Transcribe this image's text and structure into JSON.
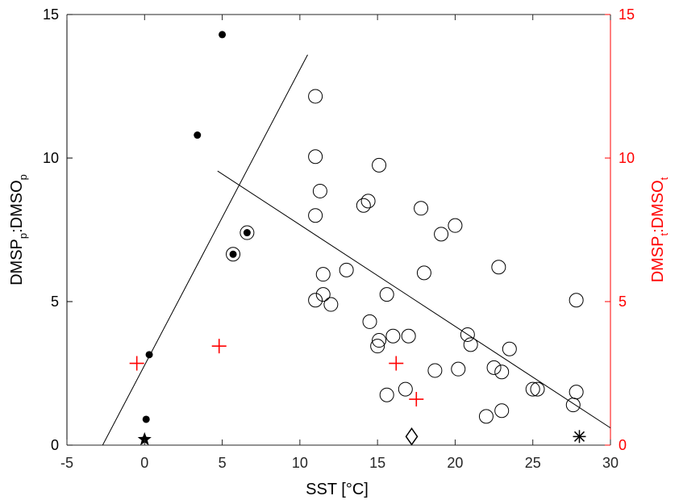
{
  "chart_data": {
    "type": "scatter",
    "xlabel": "SST [°C]",
    "ylabel_left": {
      "main": "DMSP",
      "sub1": "p",
      "sep": ":DMSO",
      "sub2": "p"
    },
    "ylabel_right": {
      "main": "DMSP",
      "sub1": "t",
      "sep": ":DMSO",
      "sub2": "t"
    },
    "xlim": [
      -5,
      30
    ],
    "ylim_left": [
      0,
      15
    ],
    "ylim_right": [
      0,
      15
    ],
    "x_ticks": [
      -5,
      0,
      5,
      10,
      15,
      20,
      25,
      30
    ],
    "y_ticks_left": [
      0,
      5,
      10,
      15
    ],
    "y_ticks_right": [
      0,
      5,
      10,
      15
    ],
    "x_tick_labels": [
      "-5",
      "0",
      "5",
      "10",
      "15",
      "20",
      "25",
      "30"
    ],
    "y_tick_labels_left": [
      "0",
      "5",
      "10",
      "15"
    ],
    "y_tick_labels_right": [
      "0",
      "5",
      "10",
      "15"
    ],
    "grid": false,
    "legend": "none",
    "colors": {
      "left_axis": "#000000",
      "right_axis": "#ff0000",
      "marker": "#000000",
      "plus": "#ff0000"
    },
    "series": [
      {
        "marker": "filled-circle",
        "axis": "left",
        "points": [
          [
            5.0,
            14.3
          ],
          [
            3.4,
            10.8
          ],
          [
            5.7,
            6.65
          ],
          [
            6.6,
            7.4
          ],
          [
            0.3,
            3.15
          ],
          [
            0.1,
            0.9
          ]
        ]
      },
      {
        "marker": "open-circle",
        "axis": "left",
        "points": [
          [
            5.7,
            6.65
          ],
          [
            6.6,
            7.4
          ],
          [
            11.0,
            12.15
          ],
          [
            11.0,
            10.05
          ],
          [
            15.1,
            9.75
          ],
          [
            11.3,
            8.85
          ],
          [
            11.0,
            8.0
          ],
          [
            14.1,
            8.35
          ],
          [
            14.4,
            8.5
          ],
          [
            17.8,
            8.25
          ],
          [
            20.0,
            7.65
          ],
          [
            19.1,
            7.35
          ],
          [
            13.0,
            6.1
          ],
          [
            11.5,
            5.95
          ],
          [
            18.0,
            6.0
          ],
          [
            22.8,
            6.2
          ],
          [
            11.5,
            5.25
          ],
          [
            11.0,
            5.05
          ],
          [
            12.0,
            4.9
          ],
          [
            15.6,
            5.25
          ],
          [
            27.8,
            5.05
          ],
          [
            14.5,
            4.3
          ],
          [
            16.0,
            3.8
          ],
          [
            17.0,
            3.8
          ],
          [
            15.1,
            3.65
          ],
          [
            15.0,
            3.45
          ],
          [
            20.8,
            3.85
          ],
          [
            21.0,
            3.5
          ],
          [
            23.5,
            3.35
          ],
          [
            22.5,
            2.7
          ],
          [
            20.2,
            2.65
          ],
          [
            18.7,
            2.6
          ],
          [
            23.0,
            2.55
          ],
          [
            16.8,
            1.95
          ],
          [
            15.6,
            1.75
          ],
          [
            25.0,
            1.95
          ],
          [
            25.3,
            1.95
          ],
          [
            27.8,
            1.85
          ],
          [
            27.6,
            1.4
          ],
          [
            23.0,
            1.2
          ],
          [
            22.0,
            1.0
          ]
        ]
      },
      {
        "marker": "plus",
        "axis": "right",
        "points": [
          [
            -0.5,
            2.85
          ],
          [
            4.8,
            3.45
          ],
          [
            16.2,
            2.85
          ],
          [
            17.5,
            1.6
          ]
        ]
      },
      {
        "marker": "star",
        "axis": "left",
        "points": [
          [
            0.0,
            0.2
          ]
        ]
      },
      {
        "marker": "diamond",
        "axis": "left",
        "points": [
          [
            17.2,
            0.3
          ]
        ]
      },
      {
        "marker": "asterisk",
        "axis": "left",
        "points": [
          [
            28.0,
            0.3
          ]
        ]
      }
    ],
    "fit_lines": [
      {
        "from": [
          -2.7,
          0.0
        ],
        "to": [
          10.5,
          13.6
        ]
      },
      {
        "from": [
          4.7,
          9.55
        ],
        "to": [
          30.0,
          0.6
        ]
      }
    ]
  }
}
